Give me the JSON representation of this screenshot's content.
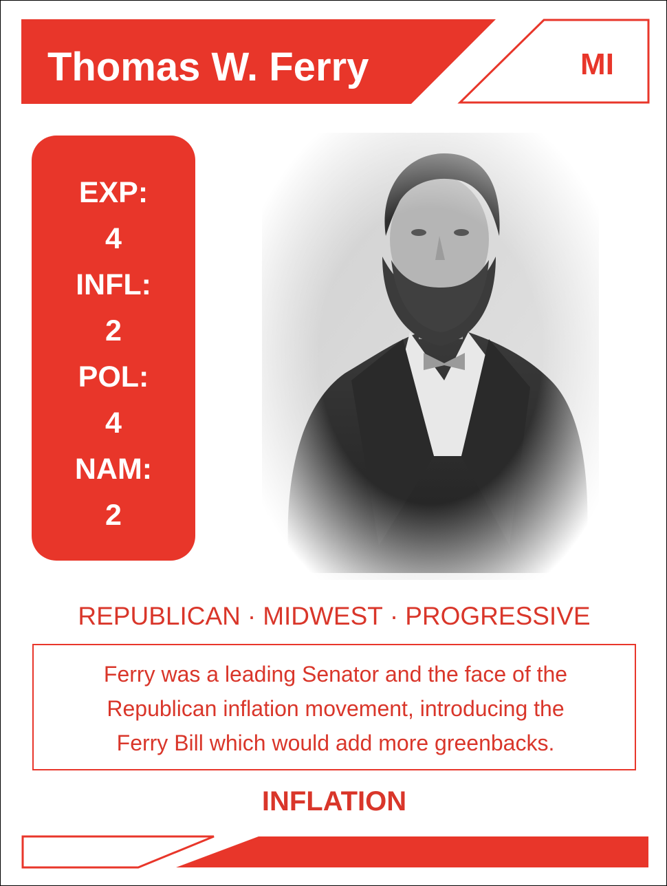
{
  "card": {
    "name": "Thomas W. Ferry",
    "state": "MI",
    "stats": [
      {
        "label": "EXP:",
        "value": "4"
      },
      {
        "label": "INFL:",
        "value": "2"
      },
      {
        "label": "POL:",
        "value": "4"
      },
      {
        "label": "NAM:",
        "value": "2"
      }
    ],
    "tags": [
      "REPUBLICAN",
      "MIDWEST",
      "PROGRESSIVE"
    ],
    "tag_separator": "·",
    "description_lines": [
      "Ferry was a leading Senator and the face of the",
      "Republican inflation movement, introducing the",
      "Ferry Bill which would add more greenbacks."
    ],
    "keyword": "INFLATION",
    "colors": {
      "accent": "#e8362a",
      "background": "#ffffff"
    },
    "portrait": "black-and-white portrait photo"
  }
}
